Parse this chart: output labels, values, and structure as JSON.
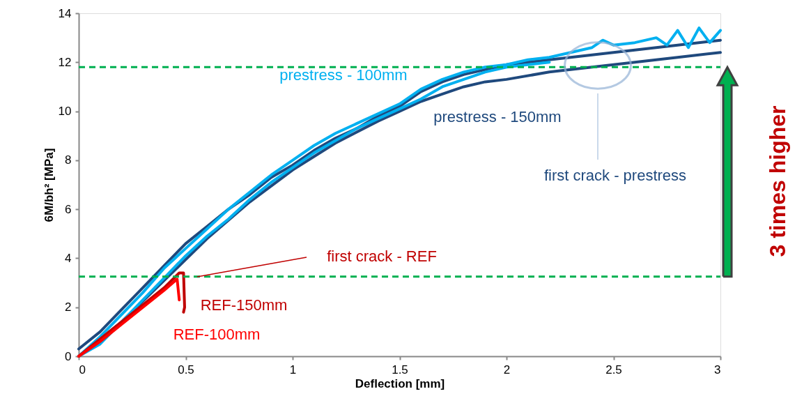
{
  "chart_data": {
    "type": "line",
    "xlabel": "Deflection [mm]",
    "ylabel": "6M/bh² [MPa]",
    "xlim": [
      0,
      3
    ],
    "xticks": [
      0,
      0.5,
      1,
      1.5,
      2,
      2.5,
      3
    ],
    "ylim": [
      0,
      14
    ],
    "yticks": [
      0,
      2,
      4,
      6,
      8,
      10,
      12,
      14
    ],
    "grid": false,
    "legend": false,
    "marker": "none",
    "line_style": "solid",
    "series": [
      {
        "name": "prestress - 150mm",
        "color": "#1f497d",
        "x": [
          0,
          0.2,
          0.4,
          0.6,
          0.8,
          1.0,
          1.2,
          1.4,
          1.5,
          1.6,
          1.7,
          1.8,
          1.9,
          2.0,
          2.2,
          2.4,
          2.6,
          2.8,
          3.0
        ],
        "values": [
          0,
          1.4,
          3.1,
          4.8,
          6.3,
          7.6,
          8.7,
          9.6,
          10.0,
          10.4,
          10.7,
          11.0,
          11.2,
          11.3,
          11.6,
          11.8,
          12.0,
          12.2,
          12.4
        ]
      },
      {
        "color": "#1f497d",
        "x": [
          0,
          0.1,
          0.2,
          0.3,
          0.4,
          0.5,
          0.6,
          0.7,
          0.8,
          0.9,
          1.0,
          1.1,
          1.2,
          1.3,
          1.4,
          1.5,
          1.6,
          1.7,
          1.8,
          1.9,
          2.0,
          2.2,
          2.4,
          2.6,
          2.8,
          3.0
        ],
        "values": [
          0.3,
          1.0,
          1.9,
          2.8,
          3.7,
          4.6,
          5.3,
          6.0,
          6.6,
          7.3,
          7.8,
          8.4,
          8.9,
          9.3,
          9.8,
          10.2,
          10.8,
          11.2,
          11.5,
          11.7,
          11.9,
          12.1,
          12.3,
          12.5,
          12.7,
          12.9
        ]
      },
      {
        "color": "#00b0f0",
        "x": [
          0,
          0.1,
          0.2,
          0.3,
          0.4,
          0.5,
          0.6,
          0.7,
          0.8,
          0.9,
          1.0,
          1.1,
          1.2,
          1.3,
          1.4,
          1.5,
          1.6,
          1.7,
          1.8,
          1.9,
          2.0,
          2.2
        ],
        "values": [
          0,
          0.5,
          1.4,
          2.3,
          3.2,
          4.1,
          4.9,
          5.6,
          6.4,
          7.1,
          7.7,
          8.3,
          8.8,
          9.3,
          9.7,
          10.1,
          10.5,
          11.0,
          11.3,
          11.6,
          11.8,
          12.0
        ]
      },
      {
        "name": "prestress - 100mm",
        "color": "#00b0f0",
        "x": [
          0,
          0.1,
          0.2,
          0.3,
          0.4,
          0.5,
          0.6,
          0.7,
          0.8,
          0.9,
          1.0,
          1.1,
          1.2,
          1.3,
          1.4,
          1.5,
          1.6,
          1.7,
          1.8,
          1.9,
          2.0,
          2.1,
          2.2,
          2.3,
          2.4,
          2.45,
          2.5,
          2.6,
          2.7,
          2.75,
          2.8,
          2.85,
          2.9,
          2.95,
          3.0
        ],
        "values": [
          0,
          0.8,
          1.7,
          2.6,
          3.6,
          4.4,
          5.2,
          6.0,
          6.7,
          7.4,
          8.0,
          8.6,
          9.1,
          9.5,
          9.9,
          10.3,
          10.9,
          11.3,
          11.6,
          11.8,
          11.9,
          12.1,
          12.2,
          12.4,
          12.6,
          12.9,
          12.7,
          12.8,
          13.0,
          12.7,
          13.3,
          12.6,
          13.4,
          12.8,
          13.3
        ]
      },
      {
        "name": "REF-150mm",
        "color": "#c00000",
        "x": [
          0,
          0.1,
          0.2,
          0.3,
          0.4,
          0.47,
          0.49,
          0.495,
          0.49
        ],
        "values": [
          0,
          0.7,
          1.4,
          2.1,
          2.8,
          3.4,
          3.4,
          2.0,
          1.8
        ]
      },
      {
        "name": "REF-100mm",
        "color": "#ff0000",
        "x": [
          0,
          0.1,
          0.2,
          0.3,
          0.4,
          0.46,
          0.47
        ],
        "values": [
          0,
          0.6,
          1.3,
          2.0,
          2.7,
          3.15,
          2.3
        ]
      }
    ],
    "ref_lines": [
      {
        "axis": "y",
        "value": 3.25,
        "color": "#00b050",
        "line_style": "dashed"
      },
      {
        "axis": "y",
        "value": 11.8,
        "color": "#00b050",
        "line_style": "dashed"
      }
    ],
    "annotations": [
      "first crack - REF",
      "first crack - prestress",
      "3 times higher"
    ]
  }
}
